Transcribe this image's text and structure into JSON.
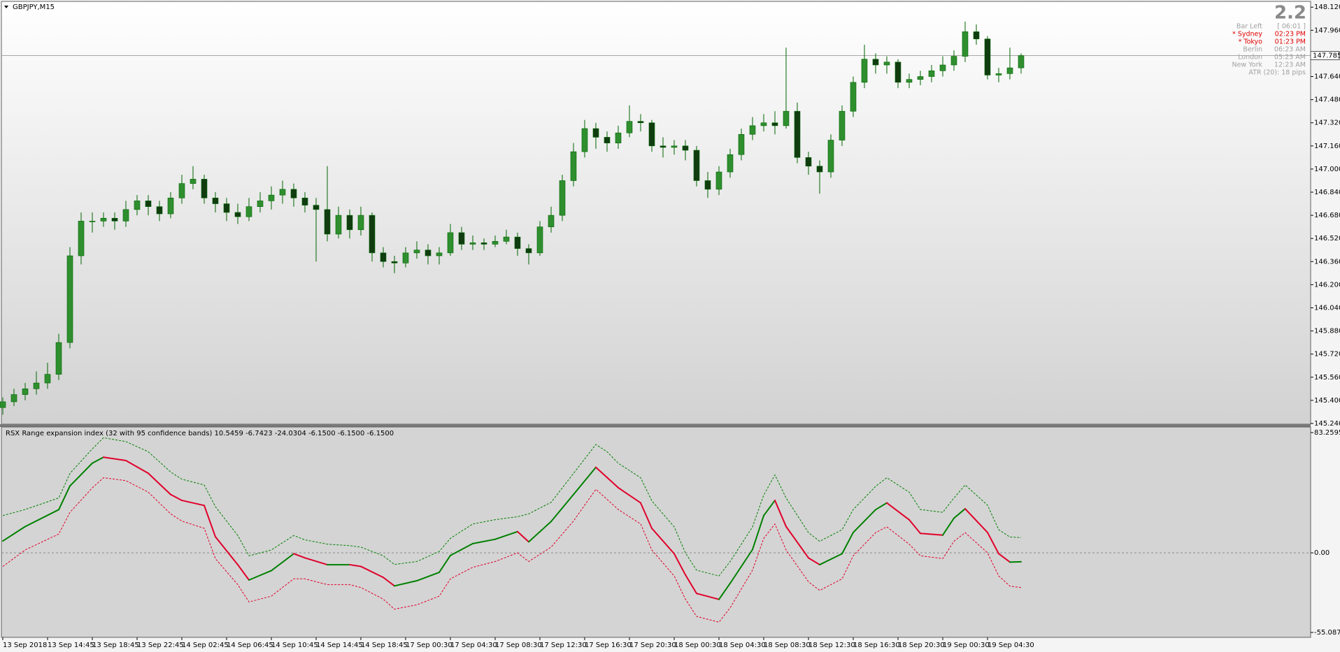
{
  "chart_data": [
    {
      "type": "candlestick",
      "title": "GBPJPY,M15",
      "xlim": [
        -0.125,
        116.875
      ],
      "ylim": [
        145.235,
        148.155
      ],
      "yticks": [
        {
          "value": 148.12,
          "label": "148.120"
        },
        {
          "value": 147.96,
          "label": "147.960"
        },
        {
          "value": 147.64,
          "label": "147.640"
        },
        {
          "value": 147.48,
          "label": "147.480"
        },
        {
          "value": 147.32,
          "label": "147.320"
        },
        {
          "value": 147.16,
          "label": "147.160"
        },
        {
          "value": 147.0,
          "label": "147.000"
        },
        {
          "value": 146.84,
          "label": "146.840"
        },
        {
          "value": 146.68,
          "label": "146.680"
        },
        {
          "value": 146.52,
          "label": "146.520"
        },
        {
          "value": 146.36,
          "label": "146.360"
        },
        {
          "value": 146.2,
          "label": "146.200"
        },
        {
          "value": 146.04,
          "label": "146.040"
        },
        {
          "value": 145.88,
          "label": "145.880"
        },
        {
          "value": 145.72,
          "label": "145.720"
        },
        {
          "value": 145.56,
          "label": "145.560"
        },
        {
          "value": 145.4,
          "label": "145.400"
        },
        {
          "value": 145.24,
          "label": "145.240"
        }
      ],
      "up_color": "#2f8f2f",
      "down_color": "#103c10",
      "wick_color": "#006400",
      "last_price": 147.785,
      "last_price_color": "#a8a8a8",
      "ohlc": [
        [
          145.35,
          145.42,
          145.3,
          145.39
        ],
        [
          145.39,
          145.48,
          145.36,
          145.44
        ],
        [
          145.44,
          145.52,
          145.4,
          145.48
        ],
        [
          145.48,
          145.6,
          145.44,
          145.52
        ],
        [
          145.52,
          145.66,
          145.48,
          145.58
        ],
        [
          145.58,
          145.86,
          145.54,
          145.8
        ],
        [
          145.8,
          146.46,
          145.76,
          146.4
        ],
        [
          146.4,
          146.7,
          146.34,
          146.64
        ],
        [
          146.64,
          146.7,
          146.56,
          146.64
        ],
        [
          146.64,
          146.7,
          146.6,
          146.66
        ],
        [
          146.66,
          146.7,
          146.58,
          146.64
        ],
        [
          146.64,
          146.78,
          146.6,
          146.72
        ],
        [
          146.72,
          146.82,
          146.68,
          146.78
        ],
        [
          146.78,
          146.82,
          146.68,
          146.74
        ],
        [
          146.74,
          146.78,
          146.64,
          146.69
        ],
        [
          146.69,
          146.84,
          146.66,
          146.8
        ],
        [
          146.8,
          146.96,
          146.76,
          146.9
        ],
        [
          146.9,
          147.02,
          146.86,
          146.93
        ],
        [
          146.93,
          146.96,
          146.76,
          146.8
        ],
        [
          146.8,
          146.84,
          146.7,
          146.76
        ],
        [
          146.76,
          146.8,
          146.64,
          146.7
        ],
        [
          146.7,
          146.76,
          146.62,
          146.67
        ],
        [
          146.67,
          146.8,
          146.64,
          146.74
        ],
        [
          146.74,
          146.84,
          146.7,
          146.78
        ],
        [
          146.78,
          146.88,
          146.72,
          146.82
        ],
        [
          146.82,
          146.92,
          146.76,
          146.86
        ],
        [
          146.86,
          146.9,
          146.74,
          146.8
        ],
        [
          146.8,
          146.84,
          146.7,
          146.75
        ],
        [
          146.75,
          146.8,
          146.36,
          146.72
        ],
        [
          146.72,
          147.02,
          146.5,
          146.55
        ],
        [
          146.55,
          146.74,
          146.52,
          146.68
        ],
        [
          146.68,
          146.72,
          146.52,
          146.58
        ],
        [
          146.58,
          146.74,
          146.54,
          146.68
        ],
        [
          146.68,
          146.7,
          146.36,
          146.42
        ],
        [
          146.42,
          146.46,
          146.32,
          146.36
        ],
        [
          146.36,
          146.4,
          146.28,
          146.35
        ],
        [
          146.35,
          146.46,
          146.32,
          146.42
        ],
        [
          146.42,
          146.5,
          146.38,
          146.44
        ],
        [
          146.44,
          146.48,
          146.34,
          146.4
        ],
        [
          146.4,
          146.46,
          146.34,
          146.42
        ],
        [
          146.42,
          146.62,
          146.4,
          146.56
        ],
        [
          146.56,
          146.6,
          146.44,
          146.48
        ],
        [
          146.48,
          146.54,
          146.44,
          146.49
        ],
        [
          146.49,
          146.52,
          146.44,
          146.48
        ],
        [
          146.48,
          146.54,
          146.46,
          146.5
        ],
        [
          146.5,
          146.58,
          146.48,
          146.53
        ],
        [
          146.53,
          146.56,
          146.4,
          146.45
        ],
        [
          146.45,
          146.48,
          146.34,
          146.42
        ],
        [
          146.42,
          146.64,
          146.4,
          146.6
        ],
        [
          146.6,
          146.74,
          146.56,
          146.68
        ],
        [
          146.68,
          146.96,
          146.64,
          146.92
        ],
        [
          146.92,
          147.18,
          146.88,
          147.12
        ],
        [
          147.12,
          147.34,
          147.08,
          147.28
        ],
        [
          147.28,
          147.32,
          147.14,
          147.22
        ],
        [
          147.22,
          147.26,
          147.12,
          147.18
        ],
        [
          147.18,
          147.3,
          147.14,
          147.25
        ],
        [
          147.25,
          147.44,
          147.22,
          147.33
        ],
        [
          147.33,
          147.38,
          147.26,
          147.32
        ],
        [
          147.32,
          147.34,
          147.12,
          147.16
        ],
        [
          147.16,
          147.22,
          147.08,
          147.15
        ],
        [
          147.15,
          147.2,
          147.1,
          147.16
        ],
        [
          147.16,
          147.2,
          147.06,
          147.13
        ],
        [
          147.13,
          147.16,
          146.88,
          146.92
        ],
        [
          146.92,
          146.98,
          146.8,
          146.86
        ],
        [
          146.86,
          147.02,
          146.82,
          146.98
        ],
        [
          146.98,
          147.14,
          146.94,
          147.1
        ],
        [
          147.1,
          147.28,
          147.06,
          147.24
        ],
        [
          147.24,
          147.36,
          147.2,
          147.3
        ],
        [
          147.3,
          147.38,
          147.26,
          147.32
        ],
        [
          147.32,
          147.4,
          147.24,
          147.3
        ],
        [
          147.3,
          147.84,
          147.28,
          147.4
        ],
        [
          147.4,
          147.46,
          147.04,
          147.08
        ],
        [
          147.08,
          147.12,
          146.96,
          147.02
        ],
        [
          147.02,
          147.06,
          146.83,
          146.98
        ],
        [
          146.98,
          147.24,
          146.94,
          147.2
        ],
        [
          147.2,
          147.44,
          147.16,
          147.4
        ],
        [
          147.4,
          147.64,
          147.36,
          147.6
        ],
        [
          147.6,
          147.86,
          147.56,
          147.76
        ],
        [
          147.76,
          147.8,
          147.66,
          147.72
        ],
        [
          147.72,
          147.78,
          147.66,
          147.74
        ],
        [
          147.74,
          147.76,
          147.56,
          147.6
        ],
        [
          147.6,
          147.66,
          147.56,
          147.62
        ],
        [
          147.62,
          147.68,
          147.58,
          147.64
        ],
        [
          147.64,
          147.72,
          147.6,
          147.68
        ],
        [
          147.68,
          147.78,
          147.64,
          147.72
        ],
        [
          147.72,
          147.82,
          147.68,
          147.78
        ],
        [
          147.78,
          148.02,
          147.74,
          147.95
        ],
        [
          147.95,
          148.0,
          147.86,
          147.9
        ],
        [
          147.9,
          147.92,
          147.62,
          147.65
        ],
        [
          147.65,
          147.7,
          147.6,
          147.66
        ],
        [
          147.66,
          147.84,
          147.62,
          147.7
        ],
        [
          147.7,
          147.8,
          147.66,
          147.785
        ]
      ],
      "info": {
        "score": 2.2,
        "rows": [
          {
            "label": "Bar Left",
            "value": "[ 06:01 ]",
            "color": "#a0a0a0"
          },
          {
            "label": "* Sydney",
            "value": "02:23 PM",
            "color": "#e00000"
          },
          {
            "label": "* Tokyo",
            "value": "01:23 PM",
            "color": "#e00000"
          },
          {
            "label": "Berlin",
            "value": "06:23 AM",
            "color": "#a0a0a0"
          },
          {
            "label": "London",
            "value": "05:23 AM",
            "color": "#a0a0a0"
          },
          {
            "label": "New York",
            "value": "12:23 AM",
            "color": "#a0a0a0"
          }
        ],
        "atr": "ATR (20): 18 pips"
      }
    },
    {
      "type": "line",
      "title": "RSX Range expansion index (32 with 95 confidence bands) 10.5459 -6.7423 -24.0304 -6.1500 -6.1500 -6.1500",
      "xlim": [
        -0.125,
        116.875
      ],
      "ylim": [
        -55.0871,
        83.2595
      ],
      "yticks": [
        83.2595,
        {
          "value": 0,
          "label": "0.00"
        },
        -55.0871
      ],
      "xticks": [
        {
          "value": 0,
          "label": "13 Sep 2018"
        },
        {
          "value": 4,
          "label": "13 Sep 14:45"
        },
        {
          "value": 8,
          "label": "13 Sep 18:45"
        },
        {
          "value": 12,
          "label": "13 Sep 22:45"
        },
        {
          "value": 16,
          "label": "14 Sep 02:45"
        },
        {
          "value": 20,
          "label": "14 Sep 06:45"
        },
        {
          "value": 24,
          "label": "14 Sep 10:45"
        },
        {
          "value": 28,
          "label": "14 Sep 14:45"
        },
        {
          "value": 32,
          "label": "14 Sep 18:45"
        },
        {
          "value": 36,
          "label": "17 Sep 00:30"
        },
        {
          "value": 40,
          "label": "17 Sep 04:30"
        },
        {
          "value": 44,
          "label": "17 Sep 08:30"
        },
        {
          "value": 48,
          "label": "17 Sep 12:30"
        },
        {
          "value": 52,
          "label": "17 Sep 16:30"
        },
        {
          "value": 56,
          "label": "17 Sep 20:30"
        },
        {
          "value": 60,
          "label": "18 Sep 00:30"
        },
        {
          "value": 64,
          "label": "18 Sep 04:30"
        },
        {
          "value": 68,
          "label": "18 Sep 08:30"
        },
        {
          "value": 72,
          "label": "18 Sep 12:30"
        },
        {
          "value": 76,
          "label": "18 Sep 16:30"
        },
        {
          "value": 80,
          "label": "18 Sep 20:30"
        },
        {
          "value": 84,
          "label": "19 Sep 00:30"
        },
        {
          "value": 88,
          "label": "19 Sep 04:30"
        }
      ],
      "x": [
        0,
        2,
        5,
        6,
        8,
        9,
        11,
        13,
        15,
        16,
        18,
        19,
        21,
        22,
        24,
        26,
        27,
        29,
        31,
        32,
        34,
        35,
        37,
        39,
        40,
        42,
        44,
        46,
        47,
        49,
        51,
        53,
        54,
        55,
        57,
        58,
        60,
        61,
        62,
        64,
        65,
        67,
        68,
        69,
        70,
        72,
        73,
        75,
        76,
        78,
        79,
        81,
        82,
        84,
        85,
        86,
        88,
        89,
        90,
        91
      ],
      "series": [
        {
          "color": "#008000",
          "down_color": "#e0002a",
          "width": 2,
          "dashed": false,
          "values": [
            8.2,
            18.2,
            29.9,
            46.3,
            62.1,
            66.2,
            63.9,
            55.1,
            40.4,
            36.3,
            32.8,
            11.1,
            -8.2,
            -18.8,
            -12.3,
            -0.6,
            -3.5,
            -8.2,
            -8.2,
            -9.4,
            -17.0,
            -22.9,
            -19.3,
            -13.5,
            -1.8,
            6.4,
            9.4,
            14.7,
            7.6,
            21.7,
            40.4,
            59.2,
            52.2,
            45.1,
            34.6,
            17.0,
            -0.6,
            -15.2,
            -28.1,
            -32.2,
            -21.1,
            2.3,
            25.8,
            36.3,
            18.2,
            -3.5,
            -8.2,
            -0.6,
            14.1,
            29.9,
            34.6,
            22.9,
            13.5,
            12.3,
            24.0,
            30.5,
            14.1,
            -0.6,
            -6.4,
            -6.15
          ]
        },
        {
          "color": "#008000",
          "width": 1,
          "dashed": true,
          "values": [
            25.8,
            30,
            38,
            55,
            72,
            79.7,
            77,
            70,
            56,
            51,
            47,
            32,
            12,
            -2,
            2,
            12,
            9,
            6,
            5,
            4,
            -2,
            -8,
            -6,
            1,
            10,
            20,
            23,
            25,
            27,
            35,
            55,
            75,
            70,
            62,
            52,
            36,
            18,
            0,
            -12,
            -16,
            -6,
            18,
            40,
            54,
            38,
            14,
            8,
            16,
            30,
            46,
            52,
            42,
            30,
            28,
            38,
            47,
            33,
            16,
            11,
            10.5459
          ]
        },
        {
          "color": "#e0002a",
          "width": 1,
          "dashed": true,
          "values": [
            -9.4,
            2,
            13,
            28,
            45,
            52,
            50,
            42,
            27,
            22,
            17,
            -4,
            -22,
            -34,
            -30,
            -18,
            -18,
            -22,
            -22,
            -24,
            -32,
            -39,
            -36,
            -30,
            -18,
            -10,
            -6,
            0,
            -6,
            4,
            22,
            44,
            37,
            30,
            20,
            2,
            -16,
            -32,
            -44,
            -48,
            -38,
            -12,
            10,
            20,
            2,
            -20,
            -26,
            -18,
            -2,
            14,
            18,
            6,
            -2,
            -4,
            8,
            14,
            0,
            -16,
            -23,
            -24.0304
          ]
        }
      ]
    }
  ]
}
